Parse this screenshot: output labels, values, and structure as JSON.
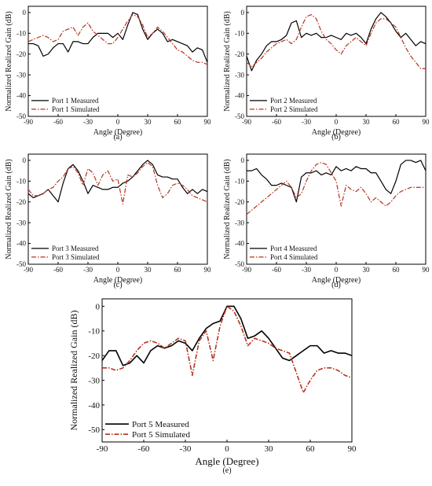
{
  "chart_data": [
    {
      "type": "line",
      "panel_label": "(a)",
      "xlabel": "Angle (Degree)",
      "ylabel": "Normalized Realized Gain (dB)",
      "xlim": [
        -90,
        90
      ],
      "ylim": [
        -50,
        3
      ],
      "xticks": [
        -90,
        -60,
        -30,
        0,
        30,
        60,
        90
      ],
      "yticks": [
        0,
        -10,
        -20,
        -30,
        -40,
        -50
      ],
      "legend_position": "bottom-left",
      "series": [
        {
          "name": "Port 1 Measured",
          "style": "solid",
          "color": "#000000",
          "x": [
            -90,
            -85,
            -80,
            -75,
            -70,
            -65,
            -60,
            -55,
            -50,
            -45,
            -40,
            -35,
            -30,
            -25,
            -20,
            -15,
            -10,
            -5,
            0,
            5,
            10,
            15,
            20,
            25,
            30,
            35,
            40,
            45,
            50,
            55,
            60,
            65,
            70,
            75,
            80,
            85,
            90
          ],
          "y": [
            -15,
            -15,
            -16,
            -21,
            -20,
            -17,
            -15,
            -15,
            -19,
            -14,
            -14,
            -15,
            -15,
            -12,
            -10,
            -10,
            -10,
            -12,
            -10,
            -13,
            -6,
            0,
            -1,
            -8,
            -13,
            -10,
            -8,
            -10,
            -14,
            -13,
            -14,
            -15,
            -16,
            -19,
            -17,
            -18,
            -24
          ]
        },
        {
          "name": "Port 1 Simulated",
          "style": "dashdot",
          "color": "#b5341e",
          "x": [
            -90,
            -85,
            -80,
            -75,
            -70,
            -65,
            -60,
            -55,
            -50,
            -45,
            -40,
            -35,
            -30,
            -25,
            -20,
            -15,
            -10,
            -5,
            0,
            5,
            10,
            15,
            20,
            25,
            30,
            35,
            40,
            45,
            50,
            55,
            60,
            65,
            70,
            75,
            80,
            85,
            90
          ],
          "y": [
            -14,
            -13,
            -12,
            -11,
            -12,
            -14,
            -13,
            -9,
            -8,
            -7,
            -11,
            -7,
            -5,
            -9,
            -11,
            -13,
            -15,
            -15,
            -12,
            -8,
            -4,
            -1,
            -2,
            -6,
            -12,
            -10,
            -7,
            -9,
            -12,
            -15,
            -18,
            -19,
            -21,
            -23,
            -24,
            -24,
            -25
          ]
        }
      ]
    },
    {
      "type": "line",
      "panel_label": "(b)",
      "xlabel": "Angle (Degree)",
      "ylabel": "Normalized Realized Gain (dB)",
      "xlim": [
        -90,
        90
      ],
      "ylim": [
        -50,
        3
      ],
      "xticks": [
        -90,
        -60,
        -30,
        0,
        30,
        60,
        90
      ],
      "yticks": [
        0,
        -10,
        -20,
        -30,
        -40,
        -50
      ],
      "legend_position": "bottom-left",
      "series": [
        {
          "name": "Port 2 Measured",
          "style": "solid",
          "color": "#000000",
          "x": [
            -90,
            -85,
            -80,
            -75,
            -70,
            -65,
            -60,
            -55,
            -50,
            -45,
            -40,
            -35,
            -30,
            -25,
            -20,
            -15,
            -10,
            -5,
            0,
            5,
            10,
            15,
            20,
            25,
            30,
            35,
            40,
            45,
            50,
            55,
            60,
            65,
            70,
            75,
            80,
            85,
            90
          ],
          "y": [
            -21,
            -28,
            -23,
            -20,
            -16,
            -14,
            -14,
            -13,
            -11,
            -5,
            -4,
            -12,
            -10,
            -11,
            -10,
            -12,
            -12,
            -11,
            -12,
            -13,
            -10,
            -11,
            -10,
            -12,
            -15,
            -8,
            -3,
            0,
            -2,
            -5,
            -9,
            -12,
            -10,
            -13,
            -16,
            -14,
            -15
          ]
        },
        {
          "name": "Port 2 Simulated",
          "style": "dashdot",
          "color": "#b5341e",
          "x": [
            -90,
            -85,
            -80,
            -75,
            -70,
            -65,
            -60,
            -55,
            -50,
            -45,
            -40,
            -35,
            -30,
            -25,
            -20,
            -15,
            -10,
            -5,
            0,
            5,
            10,
            15,
            20,
            25,
            30,
            35,
            40,
            45,
            50,
            55,
            60,
            65,
            70,
            75,
            80,
            85,
            90
          ],
          "y": [
            -24,
            -26,
            -24,
            -22,
            -19,
            -17,
            -15,
            -14,
            -13,
            -15,
            -13,
            -7,
            -2,
            -1,
            -3,
            -9,
            -13,
            -15,
            -18,
            -20,
            -16,
            -14,
            -12,
            -14,
            -16,
            -10,
            -5,
            -3,
            -3,
            -5,
            -7,
            -12,
            -17,
            -21,
            -24,
            -27,
            -27
          ]
        }
      ]
    },
    {
      "type": "line",
      "panel_label": "(c)",
      "xlabel": "Angle (Degree)",
      "ylabel": "Normalized Realized Gain (dB)",
      "xlim": [
        -90,
        90
      ],
      "ylim": [
        -50,
        3
      ],
      "xticks": [
        -90,
        -60,
        -30,
        0,
        30,
        60,
        90
      ],
      "yticks": [
        0,
        -10,
        -20,
        -30,
        -40,
        -50
      ],
      "legend_position": "bottom-left",
      "series": [
        {
          "name": "Port 3 Measured",
          "style": "solid",
          "color": "#000000",
          "x": [
            -90,
            -85,
            -80,
            -75,
            -70,
            -65,
            -60,
            -55,
            -50,
            -45,
            -40,
            -35,
            -30,
            -25,
            -20,
            -15,
            -10,
            -5,
            0,
            5,
            10,
            15,
            20,
            25,
            30,
            35,
            40,
            45,
            50,
            55,
            60,
            65,
            70,
            75,
            80,
            85,
            90
          ],
          "y": [
            -16,
            -18,
            -17,
            -16,
            -14,
            -17,
            -20,
            -11,
            -4,
            -2,
            -5,
            -10,
            -16,
            -12,
            -13,
            -14,
            -14,
            -13,
            -13,
            -11,
            -10,
            -8,
            -5,
            -2,
            0,
            -2,
            -7,
            -8,
            -8,
            -9,
            -9,
            -13,
            -16,
            -14,
            -16,
            -14,
            -15
          ]
        },
        {
          "name": "Port 3 Simulated",
          "style": "dashdot",
          "color": "#b5341e",
          "x": [
            -90,
            -85,
            -80,
            -75,
            -70,
            -65,
            -60,
            -55,
            -50,
            -45,
            -40,
            -35,
            -30,
            -25,
            -20,
            -15,
            -10,
            -5,
            0,
            5,
            10,
            15,
            20,
            25,
            30,
            35,
            40,
            45,
            50,
            55,
            60,
            65,
            70,
            75,
            80,
            85,
            90
          ],
          "y": [
            -14,
            -17,
            -17,
            -16,
            -14,
            -13,
            -10,
            -8,
            -4,
            -3,
            -6,
            -12,
            -4,
            -6,
            -12,
            -7,
            -5,
            -10,
            -9,
            -21,
            -7,
            -8,
            -6,
            -3,
            -1,
            -3,
            -12,
            -18,
            -16,
            -12,
            -11,
            -12,
            -14,
            -17,
            -18,
            -19,
            -20
          ]
        }
      ]
    },
    {
      "type": "line",
      "panel_label": "(d)",
      "xlabel": "Angle (Degree)",
      "ylabel": "Normalized Realized Gain (dB)",
      "xlim": [
        -90,
        90
      ],
      "ylim": [
        -50,
        3
      ],
      "xticks": [
        -90,
        -60,
        -30,
        0,
        30,
        60,
        90
      ],
      "yticks": [
        0,
        -10,
        -20,
        -30,
        -40,
        -50
      ],
      "legend_position": "bottom-left",
      "series": [
        {
          "name": "Port 4 Measured",
          "style": "solid",
          "color": "#000000",
          "x": [
            -90,
            -85,
            -80,
            -75,
            -70,
            -65,
            -60,
            -55,
            -50,
            -45,
            -40,
            -35,
            -30,
            -25,
            -20,
            -15,
            -10,
            -5,
            0,
            5,
            10,
            15,
            20,
            25,
            30,
            35,
            40,
            45,
            50,
            55,
            60,
            65,
            70,
            75,
            80,
            85,
            90
          ],
          "y": [
            -5,
            -5,
            -4,
            -7,
            -9,
            -12,
            -12,
            -11,
            -12,
            -13,
            -20,
            -8,
            -6,
            -6,
            -5,
            -7,
            -6,
            -7,
            -3,
            -5,
            -4,
            -5,
            -3,
            -4,
            -4,
            -6,
            -6,
            -10,
            -14,
            -16,
            -10,
            -2,
            0,
            0,
            -1,
            0,
            -5
          ]
        },
        {
          "name": "Port 4 Simulated",
          "style": "dashdot",
          "color": "#b5341e",
          "x": [
            -90,
            -85,
            -80,
            -75,
            -70,
            -65,
            -60,
            -55,
            -50,
            -45,
            -40,
            -35,
            -30,
            -25,
            -20,
            -15,
            -10,
            -5,
            0,
            5,
            10,
            15,
            20,
            25,
            30,
            35,
            40,
            45,
            50,
            55,
            60,
            65,
            70,
            75,
            80,
            85,
            90
          ],
          "y": [
            -26,
            -24,
            -22,
            -20,
            -18,
            -16,
            -14,
            -12,
            -10,
            -13,
            -18,
            -16,
            -10,
            -5,
            -2,
            -1,
            -2,
            -6,
            -10,
            -22,
            -12,
            -14,
            -15,
            -13,
            -16,
            -20,
            -18,
            -20,
            -22,
            -20,
            -17,
            -15,
            -14,
            -13,
            -13,
            -13,
            -13
          ]
        }
      ]
    },
    {
      "type": "line",
      "panel_label": "(e)",
      "xlabel": "Angle (Degree)",
      "ylabel": "Normalized Realized Gain (dB)",
      "xlim": [
        -90,
        90
      ],
      "ylim": [
        -55,
        3
      ],
      "xticks": [
        -90,
        -60,
        -30,
        0,
        30,
        60,
        90
      ],
      "yticks": [
        0,
        -10,
        -20,
        -30,
        -40,
        -50
      ],
      "legend_position": "bottom-left",
      "series": [
        {
          "name": "Port 5 Measured",
          "style": "solid",
          "color": "#000000",
          "x": [
            -90,
            -85,
            -80,
            -75,
            -70,
            -65,
            -60,
            -55,
            -50,
            -45,
            -40,
            -35,
            -30,
            -25,
            -20,
            -15,
            -10,
            -5,
            0,
            5,
            10,
            15,
            20,
            25,
            30,
            35,
            40,
            45,
            50,
            55,
            60,
            65,
            70,
            75,
            80,
            85,
            90
          ],
          "y": [
            -22,
            -18,
            -18,
            -24,
            -23,
            -20,
            -23,
            -18,
            -16,
            -17,
            -16,
            -14,
            -15,
            -18,
            -13,
            -9,
            -7,
            -6,
            0,
            0,
            -5,
            -13,
            -12,
            -10,
            -13,
            -17,
            -21,
            -22,
            -20,
            -18,
            -16,
            -16,
            -19,
            -18,
            -19,
            -19,
            -20
          ]
        },
        {
          "name": "Port 5 Simulated",
          "style": "dashdot",
          "color": "#b5341e",
          "x": [
            -90,
            -85,
            -80,
            -75,
            -70,
            -65,
            -60,
            -55,
            -50,
            -45,
            -40,
            -35,
            -30,
            -25,
            -20,
            -15,
            -10,
            -5,
            0,
            5,
            10,
            15,
            20,
            25,
            30,
            35,
            40,
            45,
            50,
            55,
            60,
            65,
            70,
            75,
            80,
            85,
            90
          ],
          "y": [
            -25,
            -25,
            -26,
            -25,
            -22,
            -18,
            -15,
            -14,
            -15,
            -17,
            -15,
            -13,
            -14,
            -28,
            -14,
            -10,
            -22,
            -8,
            0,
            -2,
            -8,
            -16,
            -13,
            -14,
            -15,
            -17,
            -18,
            -19,
            -27,
            -35,
            -30,
            -26,
            -25,
            -25,
            -26,
            -28,
            -29
          ]
        }
      ]
    }
  ]
}
